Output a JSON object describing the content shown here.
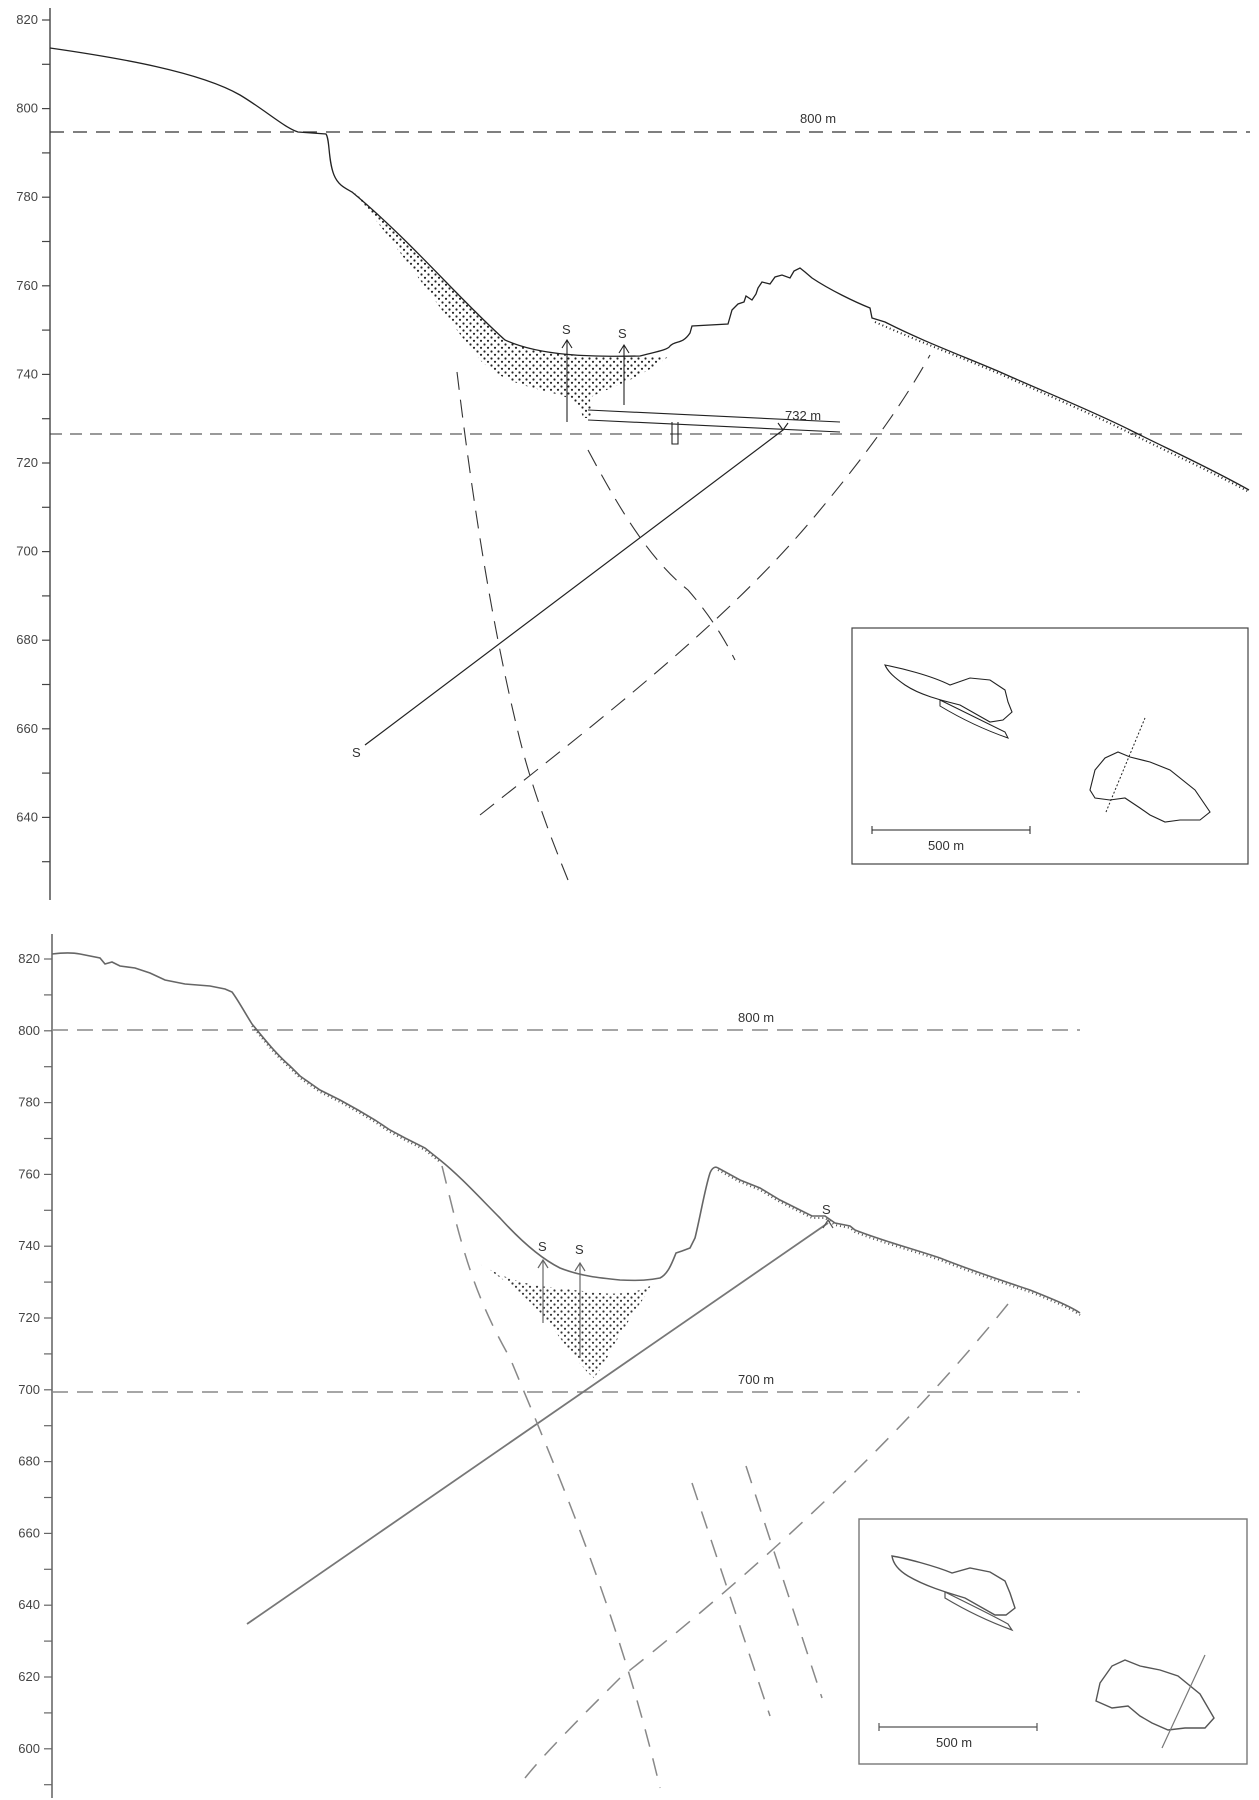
{
  "section1": {
    "y_ticks": [
      "820",
      "800",
      "780",
      "760",
      "740",
      "720",
      "700",
      "680",
      "660",
      "640"
    ],
    "ref_label_800": "800 m",
    "ref_label_732": "732 m",
    "s_labels": [
      "S",
      "S",
      "S"
    ],
    "inset_scale": "500 m"
  },
  "section2": {
    "y_ticks": [
      "820",
      "800",
      "780",
      "760",
      "740",
      "720",
      "700",
      "680",
      "660",
      "640",
      "620",
      "600"
    ],
    "ref_label_800": "800 m",
    "ref_label_700": "700 m",
    "s_labels": [
      "S",
      "S",
      "S"
    ],
    "inset_scale": "500 m"
  }
}
